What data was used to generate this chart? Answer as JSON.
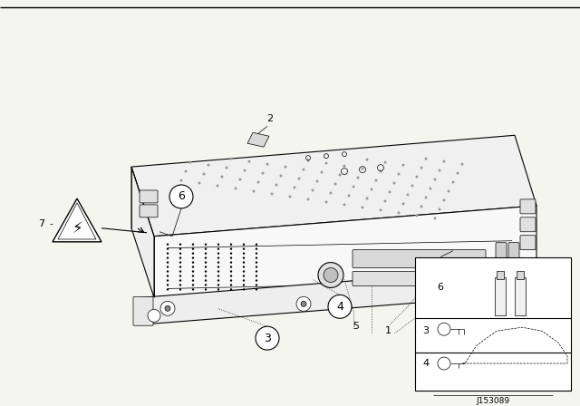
{
  "bg_color": "#ffffff",
  "line_color": "#000000",
  "part_number": "J153089",
  "image_bg": "#f5f5f0",
  "border_color": "#888888"
}
